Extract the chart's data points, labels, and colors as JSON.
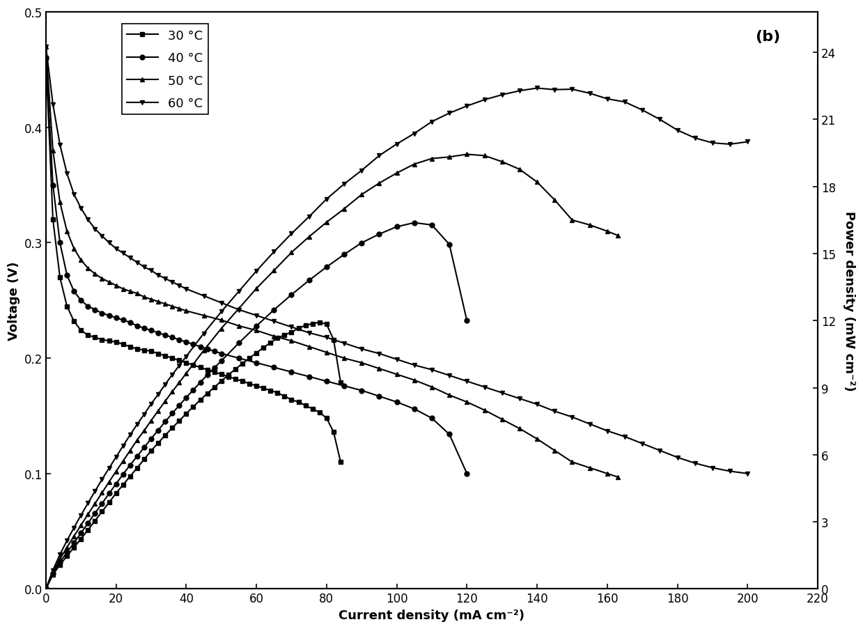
{
  "title_label": "(b)",
  "xlabel": "Current density (mA cm⁻²)",
  "ylabel_left": "Voltage (V)",
  "ylabel_right": "Power density (mW cm⁻²)",
  "xlim": [
    0,
    220
  ],
  "ylim_left": [
    0.0,
    0.5
  ],
  "ylim_right": [
    0,
    25.806
  ],
  "xticks": [
    0,
    20,
    40,
    60,
    80,
    100,
    120,
    140,
    160,
    180,
    200,
    220
  ],
  "yticks_left": [
    0.0,
    0.1,
    0.2,
    0.3,
    0.4,
    0.5
  ],
  "yticks_right": [
    0,
    3,
    6,
    9,
    12,
    15,
    18,
    21,
    24
  ],
  "line_color": "#000000",
  "background_color": "#ffffff",
  "legend_labels": [
    "30 °C",
    "40 °C",
    "50 °C",
    "60 °C"
  ],
  "markers": [
    "s",
    "o",
    "^",
    "v"
  ],
  "series": {
    "30C_voltage": {
      "x": [
        0,
        2,
        4,
        6,
        8,
        10,
        12,
        14,
        16,
        18,
        20,
        22,
        24,
        26,
        28,
        30,
        32,
        34,
        36,
        38,
        40,
        42,
        44,
        46,
        48,
        50,
        52,
        54,
        56,
        58,
        60,
        62,
        64,
        66,
        68,
        70,
        72,
        74,
        76,
        78,
        80,
        82,
        84
      ],
      "y": [
        0.46,
        0.32,
        0.27,
        0.245,
        0.232,
        0.224,
        0.22,
        0.218,
        0.216,
        0.215,
        0.214,
        0.212,
        0.21,
        0.208,
        0.207,
        0.206,
        0.204,
        0.202,
        0.2,
        0.198,
        0.196,
        0.194,
        0.192,
        0.19,
        0.188,
        0.186,
        0.184,
        0.182,
        0.18,
        0.178,
        0.176,
        0.174,
        0.172,
        0.17,
        0.167,
        0.164,
        0.162,
        0.159,
        0.156,
        0.153,
        0.148,
        0.136,
        0.11
      ]
    },
    "40C_voltage": {
      "x": [
        0,
        2,
        4,
        6,
        8,
        10,
        12,
        14,
        16,
        18,
        20,
        22,
        24,
        26,
        28,
        30,
        32,
        34,
        36,
        38,
        40,
        42,
        44,
        46,
        48,
        50,
        55,
        60,
        65,
        70,
        75,
        80,
        85,
        90,
        95,
        100,
        105,
        110,
        115,
        120
      ],
      "y": [
        0.46,
        0.35,
        0.3,
        0.272,
        0.258,
        0.25,
        0.245,
        0.242,
        0.239,
        0.237,
        0.235,
        0.233,
        0.231,
        0.228,
        0.226,
        0.224,
        0.222,
        0.22,
        0.218,
        0.216,
        0.214,
        0.212,
        0.21,
        0.208,
        0.206,
        0.204,
        0.2,
        0.196,
        0.192,
        0.188,
        0.184,
        0.18,
        0.176,
        0.172,
        0.167,
        0.162,
        0.156,
        0.148,
        0.134,
        0.1
      ]
    },
    "50C_voltage": {
      "x": [
        0,
        2,
        4,
        6,
        8,
        10,
        12,
        14,
        16,
        18,
        20,
        22,
        24,
        26,
        28,
        30,
        32,
        34,
        36,
        38,
        40,
        45,
        50,
        55,
        60,
        65,
        70,
        75,
        80,
        85,
        90,
        95,
        100,
        105,
        110,
        115,
        120,
        125,
        130,
        135,
        140,
        145,
        150,
        155,
        160,
        163
      ],
      "y": [
        0.47,
        0.38,
        0.335,
        0.31,
        0.295,
        0.285,
        0.278,
        0.273,
        0.269,
        0.266,
        0.263,
        0.26,
        0.258,
        0.256,
        0.253,
        0.251,
        0.249,
        0.247,
        0.245,
        0.243,
        0.241,
        0.237,
        0.233,
        0.228,
        0.224,
        0.219,
        0.215,
        0.21,
        0.205,
        0.2,
        0.196,
        0.191,
        0.186,
        0.181,
        0.175,
        0.168,
        0.162,
        0.155,
        0.147,
        0.139,
        0.13,
        0.12,
        0.11,
        0.105,
        0.1,
        0.097
      ]
    },
    "60C_voltage": {
      "x": [
        0,
        2,
        4,
        6,
        8,
        10,
        12,
        14,
        16,
        18,
        20,
        22,
        24,
        26,
        28,
        30,
        32,
        34,
        36,
        38,
        40,
        45,
        50,
        55,
        60,
        65,
        70,
        75,
        80,
        85,
        90,
        95,
        100,
        105,
        110,
        115,
        120,
        125,
        130,
        135,
        140,
        145,
        150,
        155,
        160,
        165,
        170,
        175,
        180,
        185,
        190,
        195,
        200
      ],
      "y": [
        0.47,
        0.42,
        0.385,
        0.36,
        0.342,
        0.33,
        0.32,
        0.312,
        0.306,
        0.3,
        0.295,
        0.291,
        0.287,
        0.283,
        0.279,
        0.276,
        0.272,
        0.269,
        0.266,
        0.263,
        0.26,
        0.254,
        0.248,
        0.242,
        0.237,
        0.232,
        0.227,
        0.222,
        0.218,
        0.213,
        0.208,
        0.204,
        0.199,
        0.194,
        0.19,
        0.185,
        0.18,
        0.175,
        0.17,
        0.165,
        0.16,
        0.154,
        0.149,
        0.143,
        0.137,
        0.132,
        0.126,
        0.12,
        0.114,
        0.109,
        0.105,
        0.102,
        0.1
      ]
    },
    "30C_power": {
      "x": [
        0,
        2,
        4,
        6,
        8,
        10,
        12,
        14,
        16,
        18,
        20,
        22,
        24,
        26,
        28,
        30,
        32,
        34,
        36,
        38,
        40,
        42,
        44,
        46,
        48,
        50,
        52,
        54,
        56,
        58,
        60,
        62,
        64,
        66,
        68,
        70,
        72,
        74,
        76,
        78,
        80,
        82,
        84
      ],
      "y": [
        0,
        0.64,
        1.08,
        1.47,
        1.856,
        2.24,
        2.64,
        3.05,
        3.46,
        3.87,
        4.28,
        4.66,
        5.04,
        5.41,
        5.8,
        6.18,
        6.53,
        6.87,
        7.2,
        7.52,
        7.84,
        8.15,
        8.45,
        8.74,
        9.02,
        9.3,
        9.57,
        9.83,
        10.08,
        10.32,
        10.56,
        10.79,
        11.01,
        11.22,
        11.36,
        11.48,
        11.66,
        11.79,
        11.86,
        11.93,
        11.84,
        11.15,
        9.24
      ]
    },
    "40C_power": {
      "x": [
        0,
        2,
        4,
        6,
        8,
        10,
        12,
        14,
        16,
        18,
        20,
        22,
        24,
        26,
        28,
        30,
        32,
        34,
        36,
        38,
        40,
        42,
        44,
        46,
        48,
        50,
        55,
        60,
        65,
        70,
        75,
        80,
        85,
        90,
        95,
        100,
        105,
        110,
        115,
        120
      ],
      "y": [
        0,
        0.7,
        1.2,
        1.63,
        2.06,
        2.5,
        2.94,
        3.39,
        3.82,
        4.27,
        4.7,
        5.13,
        5.54,
        5.93,
        6.33,
        6.72,
        7.1,
        7.48,
        7.85,
        8.21,
        8.56,
        8.9,
        9.24,
        9.57,
        9.89,
        10.2,
        11.0,
        11.76,
        12.48,
        13.16,
        13.8,
        14.4,
        14.96,
        15.48,
        15.87,
        16.2,
        16.38,
        16.28,
        15.41,
        12.0
      ]
    },
    "50C_power": {
      "x": [
        0,
        2,
        4,
        6,
        8,
        10,
        12,
        14,
        16,
        18,
        20,
        22,
        24,
        26,
        28,
        30,
        32,
        34,
        36,
        38,
        40,
        45,
        50,
        55,
        60,
        65,
        70,
        75,
        80,
        85,
        90,
        95,
        100,
        105,
        110,
        115,
        120,
        125,
        130,
        135,
        140,
        145,
        150,
        155,
        160,
        163
      ],
      "y": [
        0,
        0.76,
        1.34,
        1.86,
        2.36,
        2.85,
        3.34,
        3.82,
        4.3,
        4.79,
        5.26,
        5.72,
        6.19,
        6.66,
        7.08,
        7.53,
        7.97,
        8.4,
        8.82,
        9.23,
        9.64,
        10.67,
        11.65,
        12.54,
        13.44,
        14.24,
        15.05,
        15.75,
        16.4,
        17.0,
        17.64,
        18.15,
        18.6,
        19.0,
        19.25,
        19.32,
        19.44,
        19.38,
        19.11,
        18.77,
        18.2,
        17.4,
        16.5,
        16.28,
        16.0,
        15.81
      ]
    },
    "60C_power": {
      "x": [
        0,
        2,
        4,
        6,
        8,
        10,
        12,
        14,
        16,
        18,
        20,
        22,
        24,
        26,
        28,
        30,
        32,
        34,
        36,
        38,
        40,
        45,
        50,
        55,
        60,
        65,
        70,
        75,
        80,
        85,
        90,
        95,
        100,
        105,
        110,
        115,
        120,
        125,
        130,
        135,
        140,
        145,
        150,
        155,
        160,
        165,
        170,
        175,
        180,
        185,
        190,
        195,
        200
      ],
      "y": [
        0,
        0.84,
        1.54,
        2.16,
        2.74,
        3.3,
        3.84,
        4.37,
        4.9,
        5.4,
        5.9,
        6.4,
        6.89,
        7.36,
        7.81,
        8.28,
        8.7,
        9.15,
        9.58,
        9.99,
        10.4,
        11.43,
        12.4,
        13.31,
        14.22,
        15.08,
        15.89,
        16.65,
        17.44,
        18.11,
        18.72,
        19.38,
        19.9,
        20.37,
        20.9,
        21.28,
        21.6,
        21.88,
        22.1,
        22.28,
        22.4,
        22.33,
        22.35,
        22.17,
        21.92,
        21.78,
        21.42,
        21.0,
        20.52,
        20.17,
        19.95,
        19.89,
        20.0
      ]
    }
  },
  "marker_size": 5,
  "linewidth": 1.5,
  "font_size": 13,
  "tick_label_size": 12
}
